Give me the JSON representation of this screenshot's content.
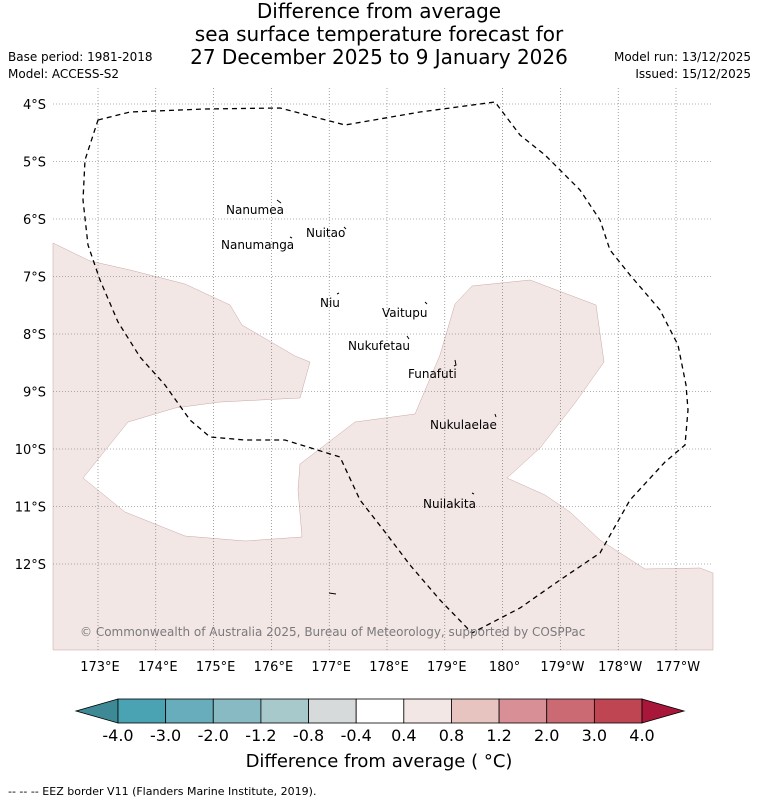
{
  "title": {
    "line1": "Difference from average",
    "line2": "sea surface temperature forecast for",
    "line3": "27 December 2025 to 9 January 2026"
  },
  "meta": {
    "base_period": "Base period: 1981-2018",
    "model": "Model: ACCESS-S2",
    "model_run": "Model run: 13/12/2025",
    "issued": "Issued: 15/12/2025"
  },
  "map": {
    "region": "Tuvalu EEZ",
    "lat_labels": [
      "4°S",
      "5°S",
      "6°S",
      "7°S",
      "8°S",
      "9°S",
      "10°S",
      "11°S",
      "12°S"
    ],
    "lon_labels": [
      "173°E",
      "174°E",
      "175°E",
      "176°E",
      "177°E",
      "178°E",
      "179°E",
      "180°",
      "179°W",
      "178°W",
      "177°W"
    ],
    "islands": [
      "Nanumea",
      "Nuitao",
      "Nanumanga",
      "Niu",
      "Vaitupu",
      "Nukufetau",
      "Funafuti",
      "Nukulaelae",
      "Nuilakita"
    ],
    "anomaly_shading": "0.4 to 0.8",
    "copyright": "© Commonwealth of Australia 2025, Bureau of Meteorology, supported by COSPPac"
  },
  "colorbar": {
    "ticks": [
      "-4.0",
      "-3.0",
      "-2.0",
      "-1.2",
      "-0.8",
      "-0.4",
      "0.4",
      "0.8",
      "1.2",
      "2.0",
      "3.0",
      "4.0"
    ],
    "colors": [
      "#4aa3b3",
      "#68adbb",
      "#88bac4",
      "#a7c9cc",
      "#d6dadb",
      "#ffffff",
      "#f3e7e6",
      "#e8c4c1",
      "#d98f96",
      "#cc6a73",
      "#c04553"
    ],
    "under_color": "#3d8a96",
    "over_color": "#a8173a",
    "anomaly_color": "#f3e7e6",
    "label": "Difference from average ( °C)"
  },
  "footnote": "--  --  -- EEZ border V11 (Flanders Marine Institute, 2019)."
}
